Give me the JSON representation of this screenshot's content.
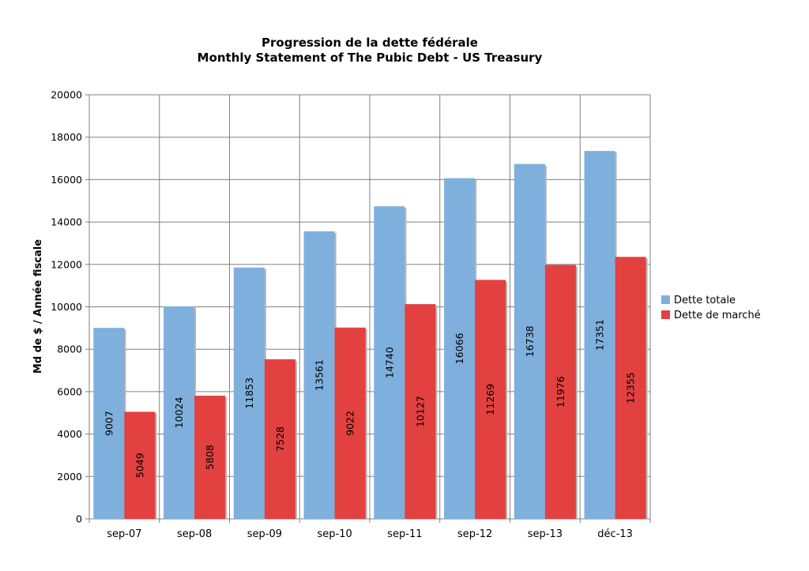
{
  "chart_data": {
    "type": "bar",
    "title": "Progression de la dette fédérale",
    "subtitle": "Monthly Statement of The Pubic Debt - US Treasury",
    "xlabel": "",
    "ylabel": "Md de $ / Année fiscale",
    "ylim": [
      0,
      20000
    ],
    "yticks": [
      0,
      2000,
      4000,
      6000,
      8000,
      10000,
      12000,
      14000,
      16000,
      18000,
      20000
    ],
    "grid": true,
    "legend_position": "right",
    "categories": [
      "sep-07",
      "sep-08",
      "sep-09",
      "sep-10",
      "sep-11",
      "sep-12",
      "sep-13",
      "déc-13"
    ],
    "series": [
      {
        "name": "Dette totale",
        "color": "#7fb0dd",
        "values": [
          9007,
          10024,
          11853,
          13561,
          14740,
          16066,
          16738,
          17351
        ]
      },
      {
        "name": "Dette de marché",
        "color": "#e34040",
        "values": [
          5049,
          5808,
          7528,
          9022,
          10127,
          11269,
          11976,
          12355
        ]
      }
    ]
  }
}
